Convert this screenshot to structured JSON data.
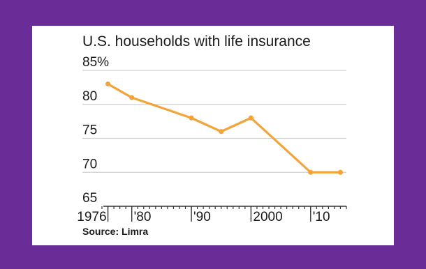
{
  "chart_data": {
    "type": "line",
    "title": "U.S. households with life insurance",
    "source": "Source: Limra",
    "y_tick_labels": [
      "85%",
      "80",
      "75",
      "70",
      "65"
    ],
    "y_tick_values": [
      85,
      80,
      75,
      70,
      65
    ],
    "ylim": [
      65,
      85
    ],
    "x_tick_labels": [
      "1976",
      "'80",
      "'90",
      "2000",
      "'10"
    ],
    "x_tick_years": [
      1976,
      1980,
      1990,
      2000,
      2010
    ],
    "xlim": [
      1975,
      2016
    ],
    "x": [
      1976,
      1980,
      1990,
      1995,
      2000,
      2010,
      2015
    ],
    "values": [
      83,
      81,
      78,
      76,
      78,
      70,
      70
    ],
    "grid": true,
    "line_color": "#f2a33a"
  }
}
